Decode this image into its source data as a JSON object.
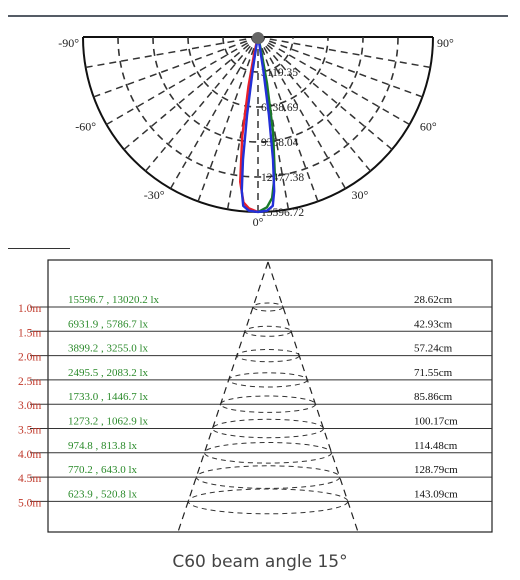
{
  "polar": {
    "type": "polar",
    "angle_labels": [
      {
        "text": "-90°",
        "angle": -90
      },
      {
        "text": "90°",
        "angle": 90
      },
      {
        "text": "-60°",
        "angle": -60
      },
      {
        "text": "60°",
        "angle": 60
      },
      {
        "text": "-30°",
        "angle": -30
      },
      {
        "text": "30°",
        "angle": 30
      },
      {
        "text": "0°",
        "angle": 0
      }
    ],
    "ring_labels": [
      "3119.35",
      "6238.69",
      "9358.04",
      "12477.38",
      "15596.72"
    ],
    "rmax": 15596.72,
    "curves": [
      {
        "color": "#e8202a",
        "points": [
          [
            0,
            15596.72
          ],
          [
            -3,
            15300
          ],
          [
            -5,
            14800
          ],
          [
            -7,
            13000
          ],
          [
            -9,
            9000
          ],
          [
            -11,
            4500
          ],
          [
            -13,
            1500
          ],
          [
            -15,
            200
          ],
          [
            -16,
            0
          ]
        ]
      },
      {
        "color": "#1a7a2a",
        "points": [
          [
            0,
            15596.72
          ],
          [
            3,
            15200
          ],
          [
            5,
            14400
          ],
          [
            7,
            12300
          ],
          [
            9,
            8600
          ],
          [
            11,
            4200
          ],
          [
            13,
            1400
          ],
          [
            15,
            200
          ],
          [
            16,
            0
          ]
        ]
      },
      {
        "color": "#2330d8",
        "points": [
          [
            0,
            15596.72
          ],
          [
            -3,
            15500
          ],
          [
            -5,
            15100
          ],
          [
            -6,
            13800
          ],
          [
            -7,
            11000
          ],
          [
            -8,
            7000
          ],
          [
            -9,
            3000
          ],
          [
            -10,
            800
          ],
          [
            -11,
            0
          ],
          [
            11,
            0
          ],
          [
            10,
            800
          ],
          [
            9,
            3000
          ],
          [
            8,
            7000
          ],
          [
            7,
            11000
          ],
          [
            6,
            13800
          ],
          [
            5,
            15100
          ],
          [
            3,
            15500
          ],
          [
            0,
            15596.72
          ]
        ]
      }
    ]
  },
  "chart_data": {
    "type": "table",
    "title": "C60 beam angle 15°",
    "columns": [
      "distance",
      "illuminance",
      "beam_diameter"
    ],
    "rows": [
      {
        "distance": "1.0m",
        "illuminance": "15596.7 , 13020.2 lx",
        "diameter": "28.62cm"
      },
      {
        "distance": "1.5m",
        "illuminance": "6931.9 , 5786.7 lx",
        "diameter": "42.93cm"
      },
      {
        "distance": "2.0m",
        "illuminance": "3899.2 , 3255.0 lx",
        "diameter": "57.24cm"
      },
      {
        "distance": "2.5m",
        "illuminance": "2495.5 , 2083.2 lx",
        "diameter": "71.55cm"
      },
      {
        "distance": "3.0m",
        "illuminance": "1733.0 , 1446.7 lx",
        "diameter": "85.86cm"
      },
      {
        "distance": "3.5m",
        "illuminance": "1273.2 , 1062.9 lx",
        "diameter": "100.17cm"
      },
      {
        "distance": "4.0m",
        "illuminance": "974.8 , 813.8 lx",
        "diameter": "114.48cm"
      },
      {
        "distance": "4.5m",
        "illuminance": "770.2 , 643.0 lx",
        "diameter": "128.79cm"
      },
      {
        "distance": "5.0m",
        "illuminance": "623.9 , 520.8 lx",
        "diameter": "143.09cm"
      }
    ]
  },
  "caption": "C60 beam angle 15°",
  "colors": {
    "distance": "#c0392b",
    "illuminance": "#2a8a2a",
    "diameter": "#111111",
    "curve_red": "#e8202a",
    "curve_green": "#1a7a2a",
    "curve_blue": "#2330d8"
  }
}
